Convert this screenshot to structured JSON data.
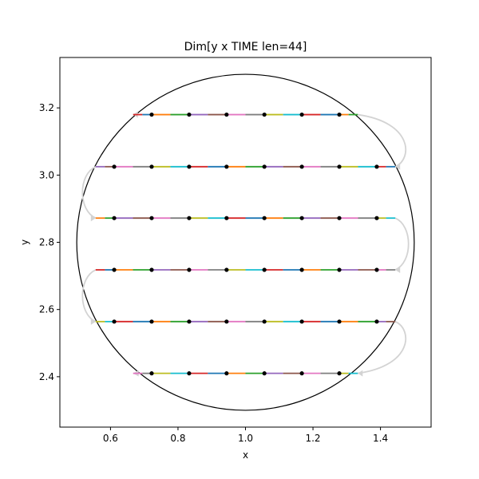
{
  "chart_data": {
    "type": "line",
    "title": "Dim[y x TIME len=44]",
    "xlabel": "x",
    "ylabel": "y",
    "xlim": [
      0.45,
      1.55
    ],
    "ylim": [
      2.25,
      3.35
    ],
    "xticks": [
      0.6,
      0.8,
      1.0,
      1.2,
      1.4
    ],
    "xtick_labels": [
      "0.6",
      "0.8",
      "1.0",
      "1.2",
      "1.4"
    ],
    "yticks": [
      2.4,
      2.6,
      2.8,
      3.0,
      3.2
    ],
    "ytick_labels": [
      "2.4",
      "2.6",
      "2.8",
      "3.0",
      "3.2"
    ],
    "circle": {
      "center": [
        1.0,
        2.8
      ],
      "radius": 0.5
    },
    "rows": [
      {
        "y": 3.18,
        "x_points": [
          0.722,
          0.833,
          0.944,
          1.056,
          1.167,
          1.278
        ],
        "x_start": 0.667,
        "x_end": 1.333
      },
      {
        "y": 3.025,
        "x_points": [
          0.611,
          0.722,
          0.833,
          0.944,
          1.056,
          1.167,
          1.278,
          1.389
        ],
        "x_start": 0.556,
        "x_end": 1.444
      },
      {
        "y": 2.872,
        "x_points": [
          0.611,
          0.722,
          0.833,
          0.944,
          1.056,
          1.167,
          1.278,
          1.389
        ],
        "x_start": 0.556,
        "x_end": 1.444
      },
      {
        "y": 2.718,
        "x_points": [
          0.611,
          0.722,
          0.833,
          0.944,
          1.056,
          1.167,
          1.278,
          1.389
        ],
        "x_start": 0.556,
        "x_end": 1.444
      },
      {
        "y": 2.564,
        "x_points": [
          0.611,
          0.722,
          0.833,
          0.944,
          1.056,
          1.167,
          1.278,
          1.389
        ],
        "x_start": 0.556,
        "x_end": 1.444
      },
      {
        "y": 2.41,
        "x_points": [
          0.722,
          0.833,
          0.944,
          1.056,
          1.167,
          1.278
        ],
        "x_start": 0.667,
        "x_end": 1.333
      }
    ],
    "segment_colors": [
      "#d62728",
      "#1f77b4",
      "#ff7f0e",
      "#2ca02c",
      "#9467bd",
      "#8c564b",
      "#e377c2",
      "#7f7f7f",
      "#bcbd22",
      "#17becf"
    ],
    "dot_color": "#000000",
    "connector_color": "#d3d3d3",
    "circle_color": "#000000"
  }
}
